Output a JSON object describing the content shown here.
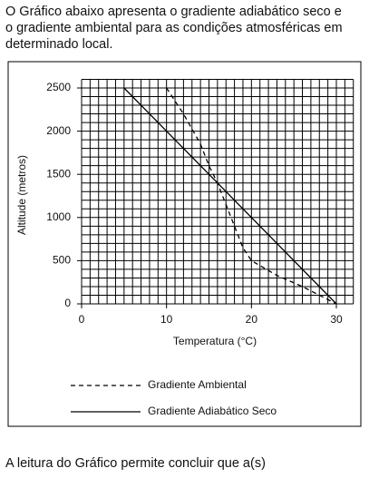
{
  "intro": {
    "lines": [
      "O Gráfico abaixo apresenta o gradiente adiabático seco e",
      "o gradiente ambiental para as condições atmosféricas em",
      "determinado local."
    ]
  },
  "chart_data": {
    "type": "line",
    "xlabel": "Temperatura (°C)",
    "ylabel": "Altitude (metros)",
    "xlim": [
      0,
      32
    ],
    "ylim": [
      0,
      2600
    ],
    "xticks": [
      0,
      10,
      20,
      30
    ],
    "yticks": [
      0,
      500,
      1000,
      1500,
      2000,
      2500
    ],
    "xgrid": [
      0,
      1,
      2,
      3,
      4,
      5,
      6,
      7,
      8,
      9,
      10,
      11,
      12,
      13,
      14,
      15,
      16,
      17,
      18,
      19,
      20,
      21,
      22,
      23,
      24,
      25,
      26,
      27,
      28,
      29,
      30,
      31,
      32
    ],
    "ygrid": [
      0,
      100,
      200,
      300,
      400,
      500,
      600,
      700,
      800,
      900,
      1000,
      1100,
      1200,
      1300,
      1400,
      1500,
      1600,
      1700,
      1800,
      1900,
      2000,
      2100,
      2200,
      2300,
      2400,
      2500,
      2600
    ],
    "series": [
      {
        "name": "Gradiente Ambiental",
        "color": "#000000",
        "dashed": true,
        "x": [
          10,
          12,
          14,
          15,
          16,
          17,
          18,
          19,
          20,
          23,
          26,
          28,
          30
        ],
        "values": [
          2500,
          2200,
          1850,
          1600,
          1400,
          1150,
          900,
          650,
          500,
          330,
          200,
          100,
          0
        ]
      },
      {
        "name": "Gradiente Adiabático Seco",
        "color": "#000000",
        "dashed": false,
        "x": [
          5,
          30
        ],
        "values": [
          2500,
          0
        ]
      }
    ]
  },
  "outro": {
    "text": "A leitura do Gráfico permite concluir que a(s)"
  }
}
